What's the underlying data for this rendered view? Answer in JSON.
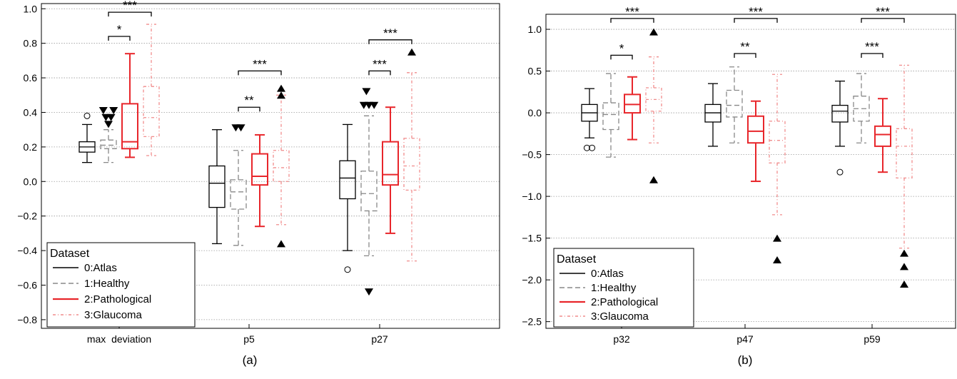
{
  "colors": {
    "atlas": "#000000",
    "healthy": "#888888",
    "pathological": "#e8262b",
    "glaucoma": "#f08c8c",
    "grid": "#9a9a9a"
  },
  "chart_data": [
    {
      "type": "boxplot",
      "panel_label": "(a)",
      "ylim": [
        -0.85,
        1.03
      ],
      "yticks": [
        -0.8,
        -0.6,
        -0.4,
        -0.2,
        0.0,
        0.2,
        0.4,
        0.6,
        0.8,
        1.0
      ],
      "ytick_labels": [
        "−0.8",
        "−0.6",
        "−0.4",
        "−0.2",
        "0.0",
        "0.2",
        "0.4",
        "0.6",
        "0.8",
        "1.0"
      ],
      "grid": true,
      "legend": {
        "title": "Dataset",
        "placement": "bottom-left",
        "entries": [
          "0:Atlas",
          "1:Healthy",
          "2:Pathological",
          "3:Glaucoma"
        ]
      },
      "groups": [
        {
          "label": "max  deviation",
          "boxes": [
            {
              "series": 0,
              "whislo": 0.11,
              "q1": 0.17,
              "med": 0.2,
              "q3": 0.23,
              "whishi": 0.33,
              "fliers": [
                {
                  "y": 0.38,
                  "marker": "circle"
                }
              ]
            },
            {
              "series": 1,
              "whislo": 0.11,
              "q1": 0.19,
              "med": 0.21,
              "q3": 0.24,
              "whishi": 0.3,
              "fliers": [
                {
                  "dx": -0.6,
                  "y": 0.41,
                  "marker": "tri-down"
                },
                {
                  "dx": 0.6,
                  "y": 0.41,
                  "marker": "tri-down"
                },
                {
                  "dx": -0.3,
                  "y": 0.37,
                  "marker": "tri-down"
                },
                {
                  "dx": 0.3,
                  "y": 0.37,
                  "marker": "tri-down"
                },
                {
                  "dx": 0,
                  "y": 0.33,
                  "marker": "tri-down"
                }
              ]
            },
            {
              "series": 2,
              "whislo": 0.14,
              "q1": 0.19,
              "med": 0.23,
              "q3": 0.45,
              "whishi": 0.74,
              "fliers": []
            },
            {
              "series": 3,
              "whislo": 0.15,
              "q1": 0.26,
              "med": 0.37,
              "q3": 0.55,
              "whishi": 0.91,
              "fliers": []
            }
          ],
          "brackets": [
            {
              "from": 1,
              "to": 2,
              "y": 0.84,
              "label": "*"
            },
            {
              "from": 1,
              "to": 3,
              "y": 0.98,
              "label": "***"
            }
          ]
        },
        {
          "label": "p5",
          "boxes": [
            {
              "series": 0,
              "whislo": -0.36,
              "q1": -0.15,
              "med": -0.01,
              "q3": 0.09,
              "whishi": 0.3,
              "fliers": []
            },
            {
              "series": 1,
              "whislo": -0.37,
              "q1": -0.16,
              "med": -0.06,
              "q3": 0.01,
              "whishi": 0.18,
              "fliers": [
                {
                  "dx": -0.3,
                  "y": 0.31,
                  "marker": "tri-down"
                },
                {
                  "dx": 0.3,
                  "y": 0.31,
                  "marker": "tri-down"
                }
              ]
            },
            {
              "series": 2,
              "whislo": -0.26,
              "q1": -0.02,
              "med": 0.03,
              "q3": 0.16,
              "whishi": 0.27,
              "fliers": []
            },
            {
              "series": 3,
              "whislo": -0.25,
              "q1": 0.0,
              "med": 0.08,
              "q3": 0.18,
              "whishi": 0.5,
              "fliers": [
                {
                  "dx": 0,
                  "y": 0.54,
                  "marker": "tri-up"
                },
                {
                  "dx": 0,
                  "y": 0.5,
                  "marker": "tri-up"
                },
                {
                  "dx": 0,
                  "y": -0.36,
                  "marker": "tri-up"
                }
              ]
            }
          ],
          "brackets": [
            {
              "from": 1,
              "to": 2,
              "y": 0.43,
              "label": "**"
            },
            {
              "from": 1,
              "to": 3,
              "y": 0.64,
              "label": "***"
            }
          ]
        },
        {
          "label": "p27",
          "boxes": [
            {
              "series": 0,
              "whislo": -0.4,
              "q1": -0.1,
              "med": 0.02,
              "q3": 0.12,
              "whishi": 0.33,
              "fliers": [
                {
                  "y": -0.51,
                  "marker": "circle"
                }
              ]
            },
            {
              "series": 1,
              "whislo": -0.43,
              "q1": -0.17,
              "med": -0.07,
              "q3": 0.06,
              "whishi": 0.38,
              "fliers": [
                {
                  "dx": -0.3,
                  "y": 0.52,
                  "marker": "tri-down"
                },
                {
                  "dx": -0.6,
                  "y": 0.44,
                  "marker": "tri-down"
                },
                {
                  "dx": 0,
                  "y": 0.44,
                  "marker": "tri-down"
                },
                {
                  "dx": 0.6,
                  "y": 0.44,
                  "marker": "tri-down"
                },
                {
                  "dx": 0,
                  "y": -0.64,
                  "marker": "tri-down"
                }
              ]
            },
            {
              "series": 2,
              "whislo": -0.3,
              "q1": -0.02,
              "med": 0.04,
              "q3": 0.23,
              "whishi": 0.43,
              "fliers": []
            },
            {
              "series": 3,
              "whislo": -0.46,
              "q1": -0.05,
              "med": 0.09,
              "q3": 0.25,
              "whishi": 0.63,
              "fliers": [
                {
                  "dx": 0,
                  "y": 0.75,
                  "marker": "tri-up"
                }
              ]
            }
          ],
          "brackets": [
            {
              "from": 1,
              "to": 2,
              "y": 0.64,
              "label": "***"
            },
            {
              "from": 1,
              "to": 3,
              "y": 0.82,
              "label": "***"
            }
          ]
        }
      ]
    },
    {
      "type": "boxplot",
      "panel_label": "(b)",
      "ylim": [
        -2.58,
        1.18
      ],
      "yticks": [
        -2.5,
        -2.0,
        -1.5,
        -1.0,
        -0.5,
        0.0,
        0.5,
        1.0
      ],
      "ytick_labels": [
        "−2.5",
        "−2.0",
        "−1.5",
        "−1.0",
        "−0.5",
        "0.0",
        "0.5",
        "1.0"
      ],
      "grid": true,
      "legend": {
        "title": "Dataset",
        "placement": "bottom-left",
        "entries": [
          "0:Atlas",
          "1:Healthy",
          "2:Pathological",
          "3:Glaucoma"
        ]
      },
      "groups": [
        {
          "label": "p32",
          "boxes": [
            {
              "series": 0,
              "whislo": -0.3,
              "q1": -0.1,
              "med": 0.0,
              "q3": 0.1,
              "whishi": 0.29,
              "fliers": [
                {
                  "dx": -0.3,
                  "y": -0.42,
                  "marker": "circle"
                },
                {
                  "dx": 0.3,
                  "y": -0.42,
                  "marker": "circle"
                }
              ]
            },
            {
              "series": 1,
              "whislo": -0.53,
              "q1": -0.2,
              "med": -0.02,
              "q3": 0.12,
              "whishi": 0.47,
              "fliers": []
            },
            {
              "series": 2,
              "whislo": -0.32,
              "q1": 0.0,
              "med": 0.1,
              "q3": 0.22,
              "whishi": 0.43,
              "fliers": []
            },
            {
              "series": 3,
              "whislo": -0.36,
              "q1": 0.02,
              "med": 0.16,
              "q3": 0.3,
              "whishi": 0.67,
              "fliers": [
                {
                  "dx": 0,
                  "y": 0.97,
                  "marker": "tri-up"
                },
                {
                  "dx": 0,
                  "y": -0.8,
                  "marker": "tri-up"
                }
              ]
            }
          ],
          "brackets": [
            {
              "from": 1,
              "to": 2,
              "y": 0.69,
              "label": "*"
            },
            {
              "from": 1,
              "to": 3,
              "y": 1.13,
              "label": "***"
            }
          ]
        },
        {
          "label": "p47",
          "boxes": [
            {
              "series": 0,
              "whislo": -0.4,
              "q1": -0.11,
              "med": 0.0,
              "q3": 0.1,
              "whishi": 0.35,
              "fliers": []
            },
            {
              "series": 1,
              "whislo": -0.36,
              "q1": -0.05,
              "med": 0.09,
              "q3": 0.27,
              "whishi": 0.55,
              "fliers": []
            },
            {
              "series": 2,
              "whislo": -0.82,
              "q1": -0.36,
              "med": -0.22,
              "q3": -0.04,
              "whishi": 0.14,
              "fliers": []
            },
            {
              "series": 3,
              "whislo": -1.22,
              "q1": -0.6,
              "med": -0.33,
              "q3": -0.1,
              "whishi": 0.46,
              "fliers": [
                {
                  "dx": 0,
                  "y": -1.5,
                  "marker": "tri-up"
                },
                {
                  "dx": 0,
                  "y": -1.76,
                  "marker": "tri-up"
                }
              ]
            }
          ],
          "brackets": [
            {
              "from": 1,
              "to": 2,
              "y": 0.71,
              "label": "**"
            },
            {
              "from": 1,
              "to": 3,
              "y": 1.13,
              "label": "***"
            }
          ]
        },
        {
          "label": "p59",
          "boxes": [
            {
              "series": 0,
              "whislo": -0.4,
              "q1": -0.11,
              "med": 0.02,
              "q3": 0.09,
              "whishi": 0.38,
              "fliers": [
                {
                  "y": -0.71,
                  "marker": "circle"
                }
              ]
            },
            {
              "series": 1,
              "whislo": -0.36,
              "q1": -0.1,
              "med": 0.05,
              "q3": 0.2,
              "whishi": 0.47,
              "fliers": []
            },
            {
              "series": 2,
              "whislo": -0.71,
              "q1": -0.4,
              "med": -0.26,
              "q3": -0.16,
              "whishi": 0.17,
              "fliers": []
            },
            {
              "series": 3,
              "whislo": -1.62,
              "q1": -0.78,
              "med": -0.4,
              "q3": -0.19,
              "whishi": 0.57,
              "fliers": [
                {
                  "dx": 0,
                  "y": -1.68,
                  "marker": "tri-up"
                },
                {
                  "dx": 0,
                  "y": -1.84,
                  "marker": "tri-up"
                },
                {
                  "dx": 0,
                  "y": -2.05,
                  "marker": "tri-up"
                }
              ]
            }
          ],
          "brackets": [
            {
              "from": 1,
              "to": 2,
              "y": 0.71,
              "label": "***"
            },
            {
              "from": 1,
              "to": 3,
              "y": 1.13,
              "label": "***"
            }
          ]
        }
      ]
    }
  ]
}
